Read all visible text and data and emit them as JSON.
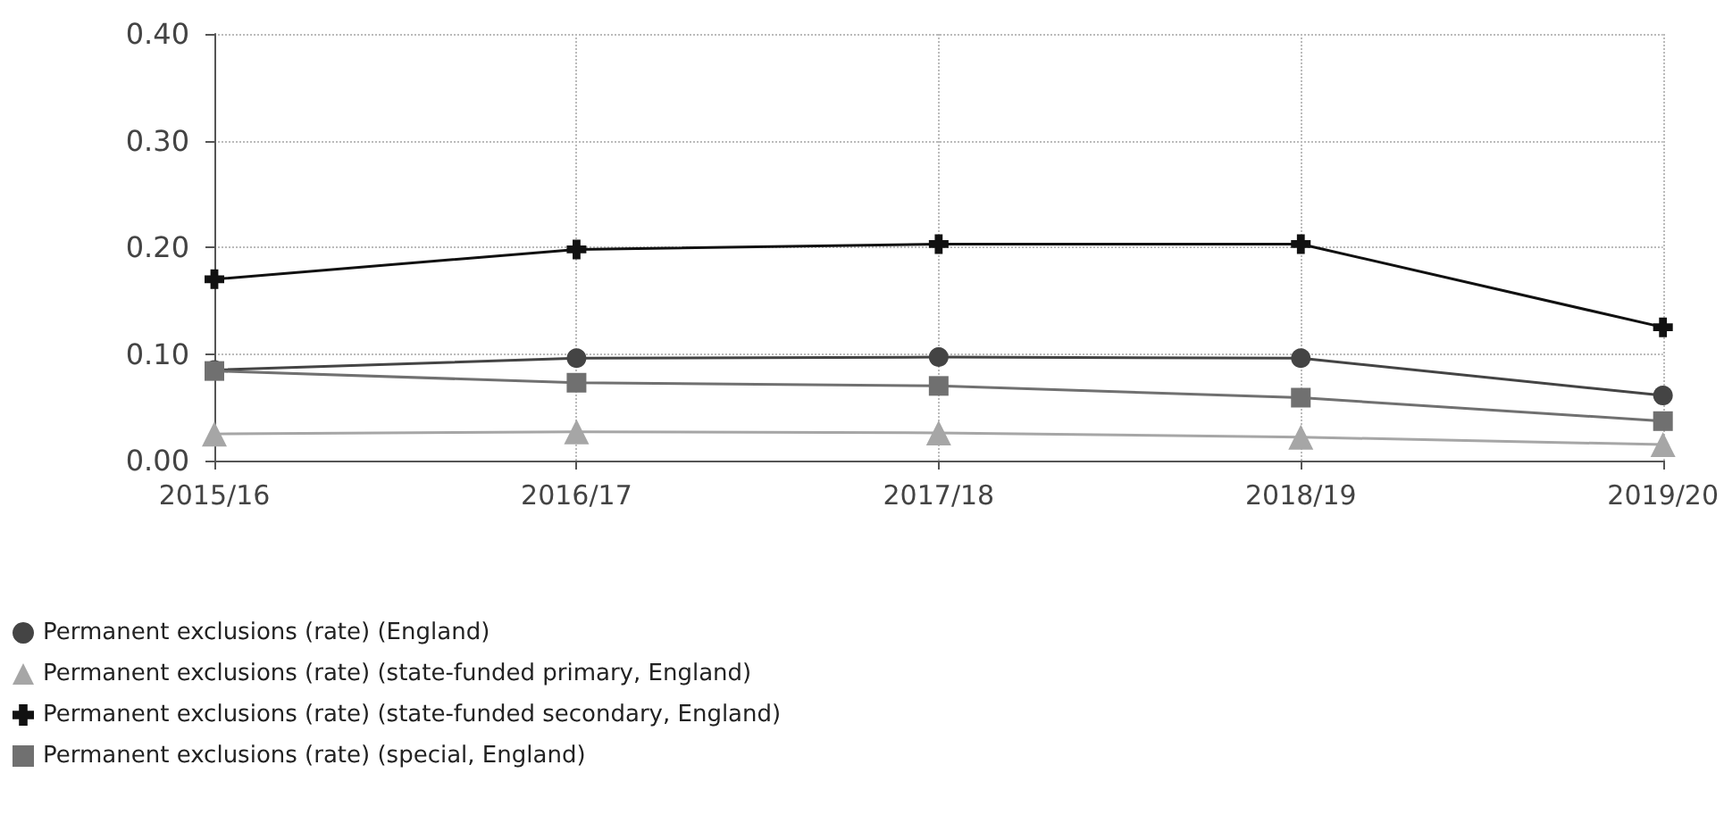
{
  "chart_data": {
    "type": "line",
    "categories": [
      "2015/16",
      "2016/17",
      "2017/18",
      "2018/19",
      "2019/20"
    ],
    "series": [
      {
        "name": "Permanent exclusions (rate) (England)",
        "color": "#444444",
        "marker": "circle",
        "values": [
          0.085,
          0.096,
          0.097,
          0.096,
          0.061
        ]
      },
      {
        "name": "Permanent exclusions (rate) (state-funded primary, England)",
        "color": "#a6a6a6",
        "marker": "triangle",
        "values": [
          0.025,
          0.027,
          0.026,
          0.022,
          0.015
        ]
      },
      {
        "name": "Permanent exclusions (rate) (state-funded secondary, England)",
        "color": "#111111",
        "marker": "cross",
        "values": [
          0.17,
          0.198,
          0.203,
          0.203,
          0.125
        ]
      },
      {
        "name": "Permanent exclusions (rate) (special, England)",
        "color": "#707070",
        "marker": "square",
        "values": [
          0.084,
          0.073,
          0.07,
          0.059,
          0.037
        ]
      }
    ],
    "ylim": [
      0,
      0.4
    ],
    "yticks": [
      {
        "value": 0,
        "label": "0.00"
      },
      {
        "value": 0.1,
        "label": "0.10"
      },
      {
        "value": 0.2,
        "label": "0.20"
      },
      {
        "value": 0.3,
        "label": "0.30"
      },
      {
        "value": 0.4,
        "label": "0.40"
      }
    ],
    "grid": true,
    "legend": "bottom left",
    "line_style": "solid"
  }
}
